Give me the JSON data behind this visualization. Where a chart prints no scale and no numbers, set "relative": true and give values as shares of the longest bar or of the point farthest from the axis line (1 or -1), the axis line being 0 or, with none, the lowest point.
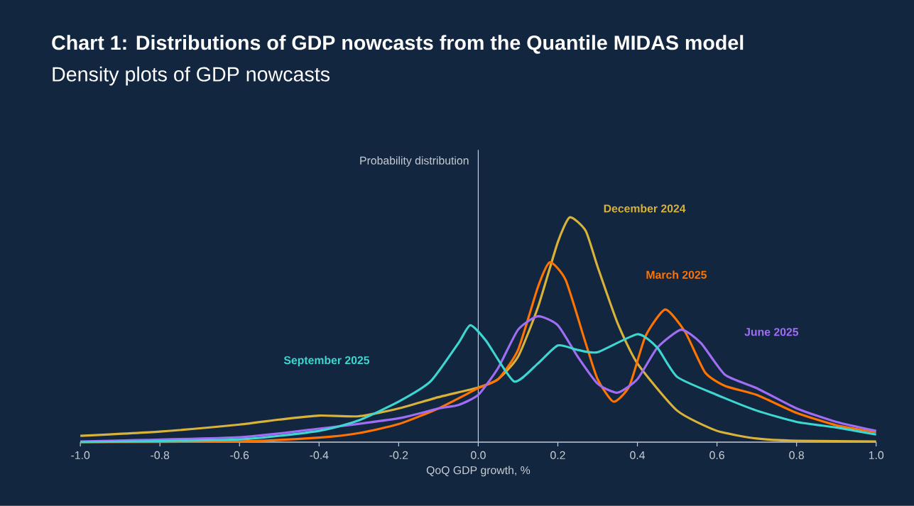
{
  "chart_data": {
    "type": "line",
    "title": "Chart 1: Distributions of GDP nowcasts from the Quantile MIDAS model",
    "subtitle": "Density plots of GDP nowcasts",
    "xlabel": "QoQ GDP growth, %",
    "relative": true,
    "xlim": [
      -1.0,
      1.0
    ],
    "xticks": [
      {
        "value": -1.0,
        "label": "-1.0"
      },
      {
        "value": -0.8,
        "label": "-0.8"
      },
      {
        "value": -0.6,
        "label": "-0.6"
      },
      {
        "value": -0.4,
        "label": "-0.4"
      },
      {
        "value": -0.2,
        "label": "-0.2"
      },
      {
        "value": 0.0,
        "label": "0.0"
      },
      {
        "value": 0.2,
        "label": "0.2"
      },
      {
        "value": 0.4,
        "label": "0.4"
      },
      {
        "value": 0.6,
        "label": "0.6"
      },
      {
        "value": 0.8,
        "label": "0.8"
      },
      {
        "value": 1.0,
        "label": "1.0"
      }
    ],
    "tick_labels": "x",
    "ref_lines": [
      {
        "axis": "x",
        "value": 0,
        "label": "Probability distribution"
      }
    ],
    "series": [
      {
        "name": "December 2024",
        "color": "#d9b23a",
        "x": [
          -1.0,
          -0.8,
          -0.6,
          -0.5,
          -0.4,
          -0.3,
          -0.2,
          -0.1,
          0.0,
          0.05,
          0.1,
          0.15,
          0.2,
          0.23,
          0.27,
          0.3,
          0.35,
          0.4,
          0.5,
          0.6,
          0.7,
          0.8,
          1.0
        ],
        "values": [
          0.028,
          0.047,
          0.078,
          0.1,
          0.118,
          0.115,
          0.15,
          0.2,
          0.243,
          0.28,
          0.38,
          0.6,
          0.89,
          1.0,
          0.94,
          0.78,
          0.53,
          0.35,
          0.14,
          0.05,
          0.016,
          0.006,
          0.003
        ]
      },
      {
        "name": "March 2025",
        "color": "#ff7300",
        "x": [
          -1.0,
          -0.6,
          -0.4,
          -0.3,
          -0.2,
          -0.1,
          0.0,
          0.05,
          0.1,
          0.15,
          0.18,
          0.22,
          0.27,
          0.3,
          0.34,
          0.38,
          0.42,
          0.47,
          0.52,
          0.57,
          0.62,
          0.7,
          0.8,
          0.9,
          1.0
        ],
        "values": [
          0.0,
          0.003,
          0.02,
          0.04,
          0.08,
          0.15,
          0.24,
          0.28,
          0.41,
          0.69,
          0.8,
          0.72,
          0.44,
          0.28,
          0.18,
          0.25,
          0.47,
          0.59,
          0.49,
          0.31,
          0.25,
          0.21,
          0.13,
          0.075,
          0.044
        ]
      },
      {
        "name": "June 2025",
        "color": "#a06ef5",
        "x": [
          -1.0,
          -0.6,
          -0.4,
          -0.2,
          -0.1,
          -0.05,
          0.0,
          0.05,
          0.1,
          0.15,
          0.2,
          0.25,
          0.3,
          0.35,
          0.4,
          0.45,
          0.51,
          0.56,
          0.62,
          0.7,
          0.8,
          0.9,
          1.0
        ],
        "values": [
          0.003,
          0.022,
          0.06,
          0.106,
          0.15,
          0.165,
          0.21,
          0.33,
          0.5,
          0.56,
          0.52,
          0.38,
          0.26,
          0.22,
          0.28,
          0.42,
          0.5,
          0.44,
          0.3,
          0.24,
          0.15,
          0.09,
          0.05
        ]
      },
      {
        "name": "September 2025",
        "color": "#3dd6d0",
        "x": [
          -1.0,
          -0.6,
          -0.4,
          -0.3,
          -0.2,
          -0.12,
          -0.05,
          -0.02,
          0.02,
          0.09,
          0.15,
          0.2,
          0.25,
          0.3,
          0.4,
          0.45,
          0.5,
          0.6,
          0.7,
          0.8,
          0.9,
          1.0
        ],
        "values": [
          0.0,
          0.012,
          0.05,
          0.097,
          0.18,
          0.27,
          0.44,
          0.52,
          0.45,
          0.27,
          0.35,
          0.43,
          0.41,
          0.4,
          0.48,
          0.42,
          0.29,
          0.21,
          0.14,
          0.09,
          0.065,
          0.034
        ]
      }
    ]
  }
}
